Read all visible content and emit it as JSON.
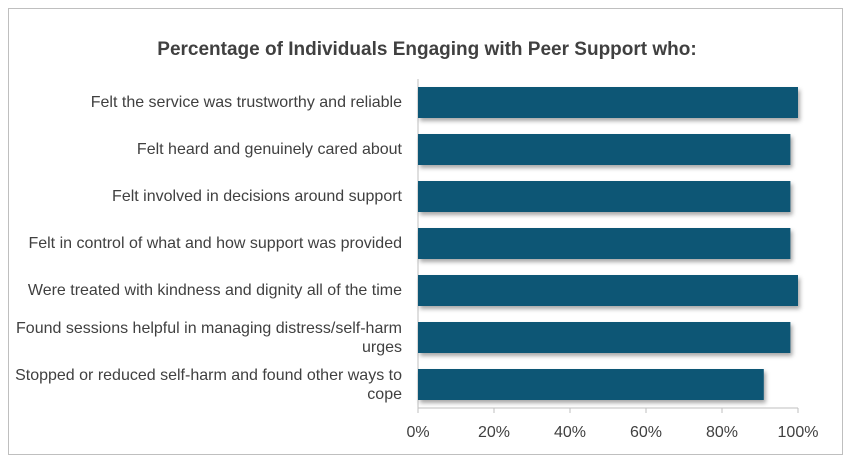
{
  "chart_data": {
    "type": "hbar",
    "title": "Percentage of Individuals Engaging with Peer Support who:",
    "categories": [
      "Felt the service was trustworthy and reliable",
      "Felt heard and genuinely cared about",
      "Felt involved in decisions around support",
      "Felt in control of what and how support was provided",
      "Were treated with kindness and dignity all of the time",
      "Found sessions helpful in managing distress/self-harm urges",
      "Stopped or reduced self-harm and found other ways to cope"
    ],
    "values": [
      100,
      98,
      98,
      98,
      100,
      98,
      91
    ],
    "color": "#0f5674",
    "xlim": [
      0,
      100
    ],
    "xticks": [
      {
        "value": 0,
        "label": "0%"
      },
      {
        "value": 20,
        "label": "20%"
      },
      {
        "value": 40,
        "label": "40%"
      },
      {
        "value": 60,
        "label": "60%"
      },
      {
        "value": 80,
        "label": "80%"
      },
      {
        "value": 100,
        "label": "100%"
      }
    ]
  }
}
